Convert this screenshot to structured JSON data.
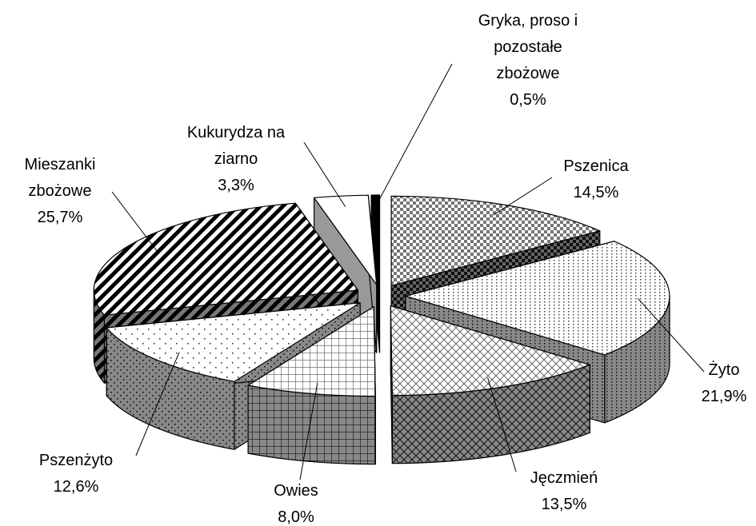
{
  "chart_data": {
    "type": "pie",
    "categories": [
      "Pszenica",
      "Żyto",
      "Jęczmień",
      "Owies",
      "Pszenżyto",
      "Mieszanki zbożowe",
      "Kukurydza na ziarno",
      "Gryka, proso i pozostałe zbożowe"
    ],
    "values": [
      14.5,
      21.9,
      13.5,
      8.0,
      12.6,
      25.7,
      3.3,
      0.5
    ],
    "value_labels": [
      "14,5%",
      "21,9%",
      "13,5%",
      "8,0%",
      "12,6%",
      "25,7%",
      "3,3%",
      "0,5%"
    ]
  }
}
